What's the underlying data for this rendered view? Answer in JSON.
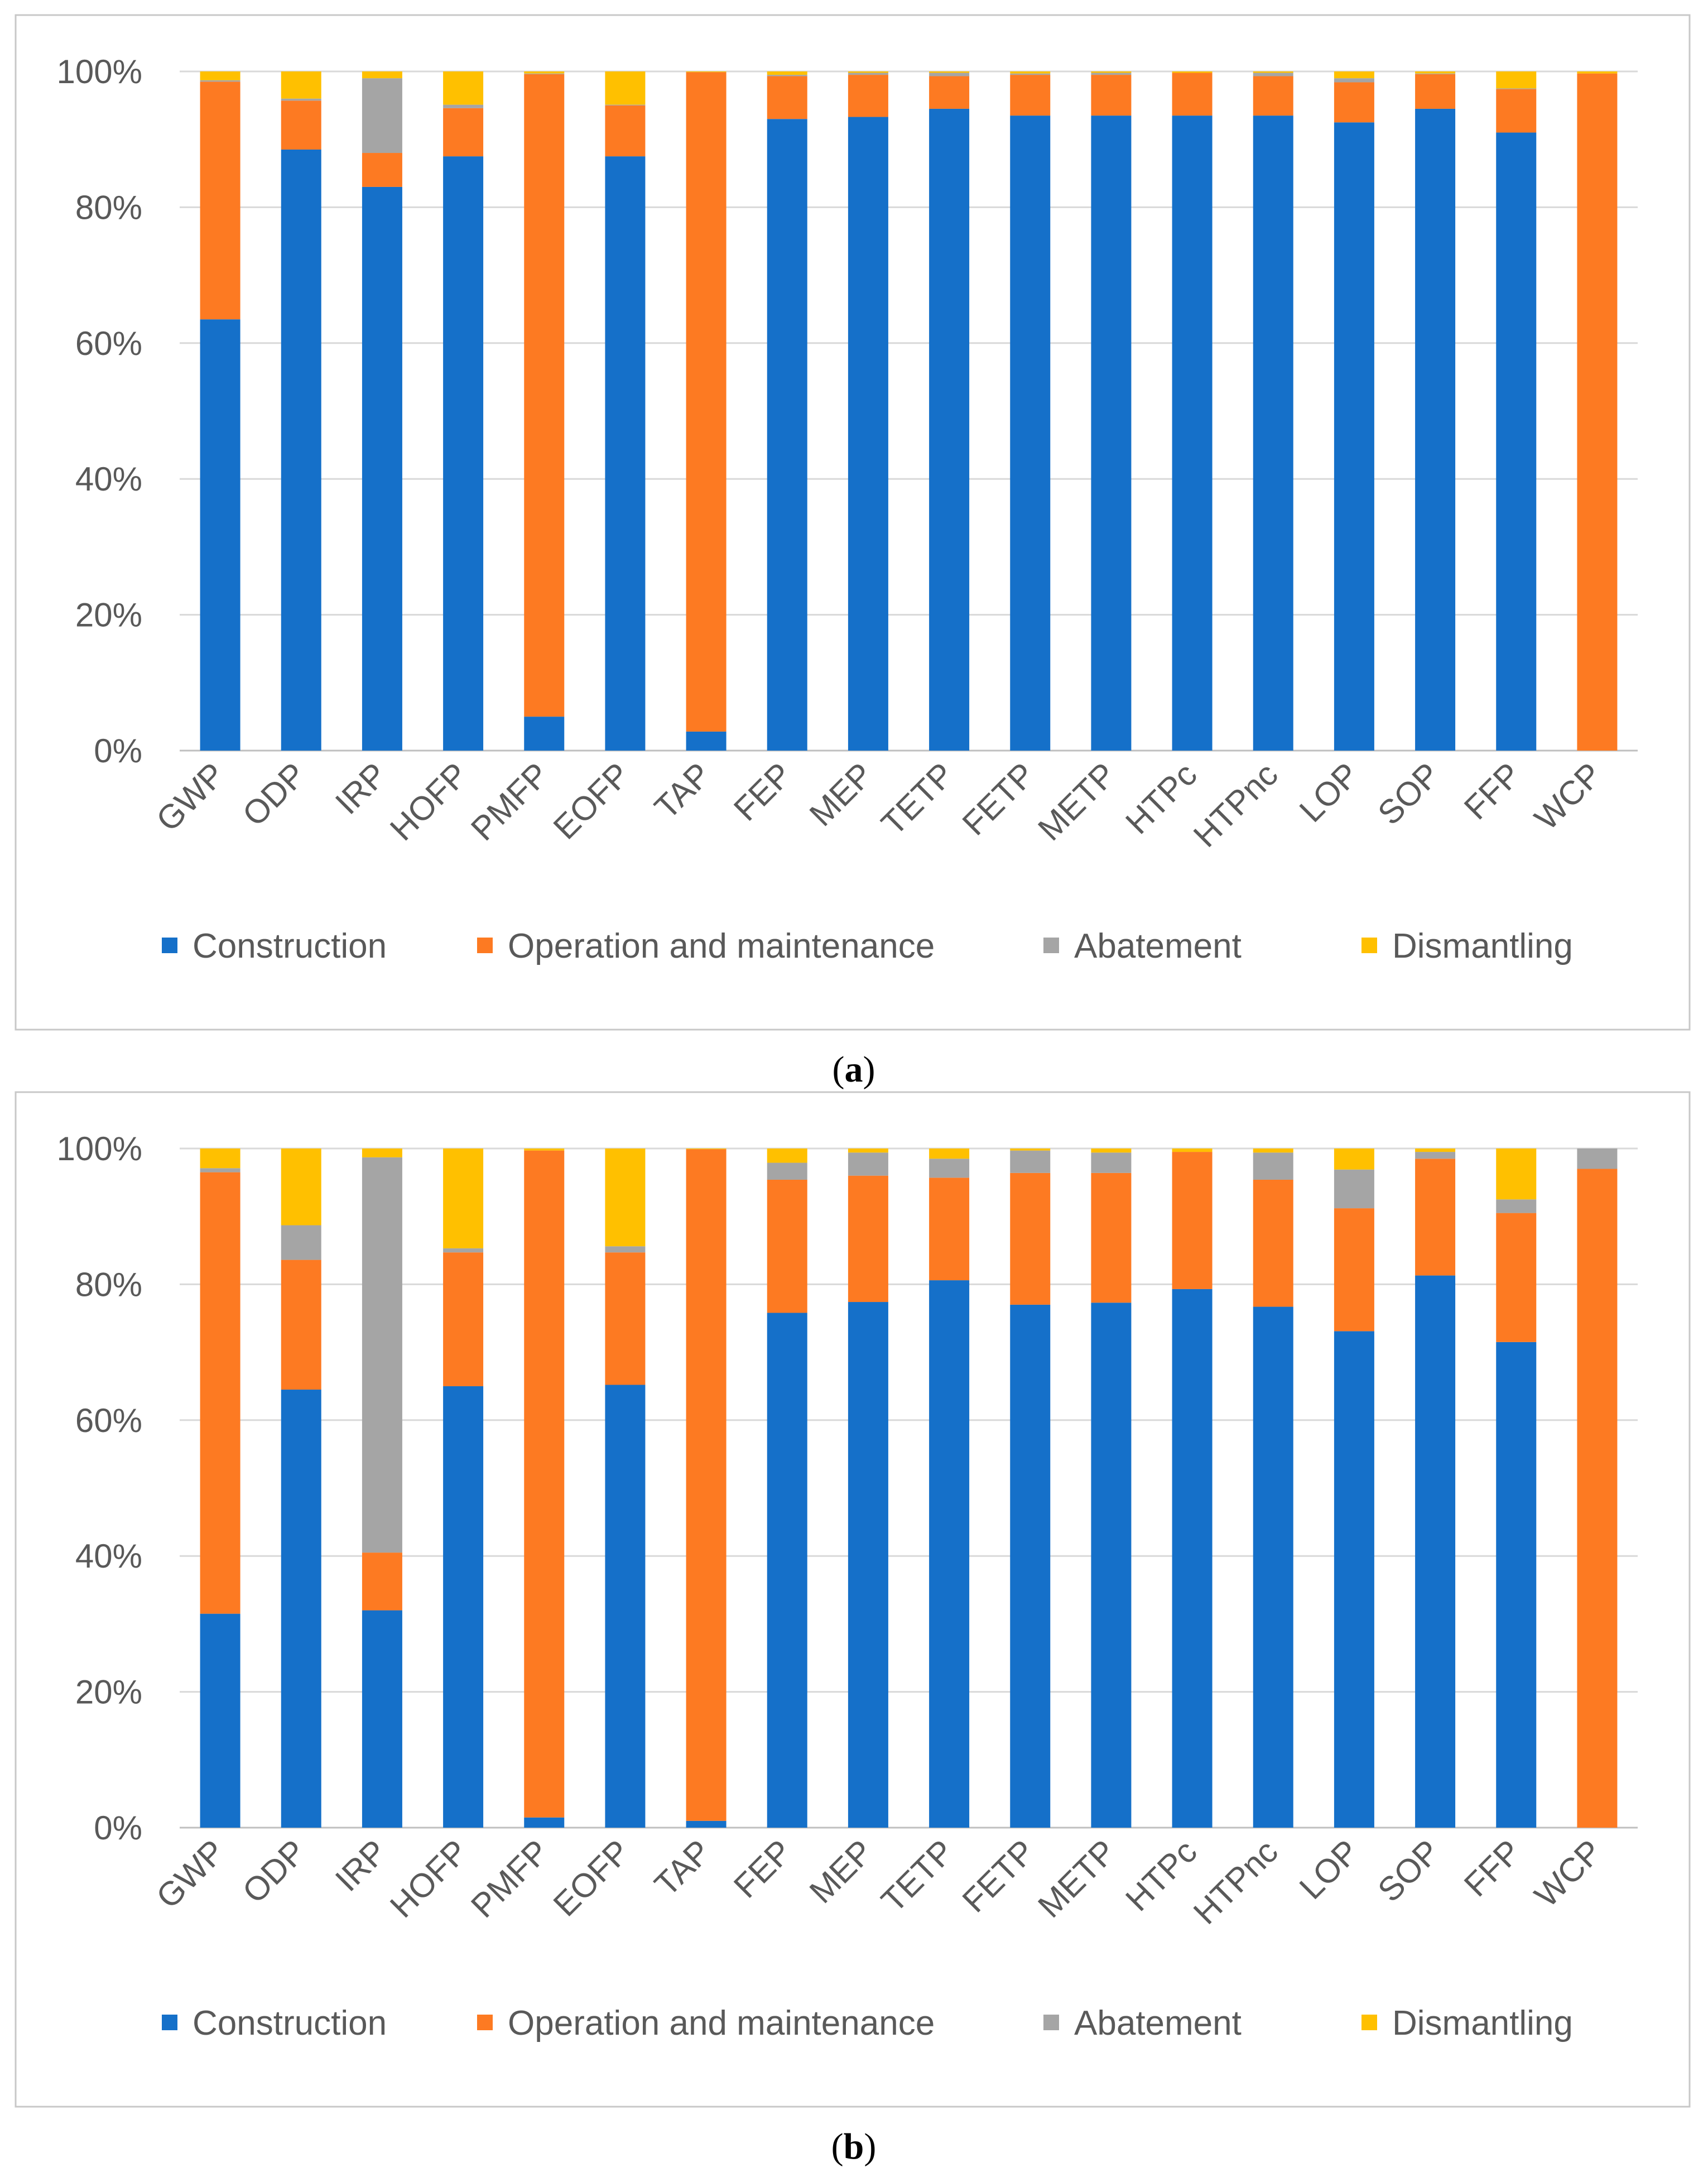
{
  "colors": {
    "Construction": "#1570c9",
    "Operation and maintenance": "#fd7a22",
    "Abatement": "#a5a5a5",
    "Dismantling": "#ffc000"
  },
  "chart_data": [
    {
      "type": "bar",
      "stacked": true,
      "caption": {
        "open": "(",
        "letter": "a",
        "close": ")"
      },
      "categories": [
        "GWP",
        "ODP",
        "IRP",
        "HOFP",
        "PMFP",
        "EOFP",
        "TAP",
        "FEP",
        "MEP",
        "TETP",
        "FETP",
        "METP",
        "HTPc",
        "HTPnc",
        "LOP",
        "SOP",
        "FFP",
        "WCP"
      ],
      "yticks": [
        "0%",
        "20%",
        "40%",
        "60%",
        "80%",
        "100%"
      ],
      "ylim": [
        0,
        100
      ],
      "legend_position": "bottom",
      "series": [
        {
          "name": "Construction",
          "values": [
            63.5,
            88.5,
            83,
            87.5,
            5,
            87.5,
            2.8,
            93,
            93.3,
            94.5,
            93.5,
            93.5,
            93.5,
            93.5,
            92.5,
            94.5,
            91,
            0
          ]
        },
        {
          "name": "Operation and maintenance",
          "values": [
            35,
            7.2,
            5,
            7.1,
            94.6,
            7.5,
            97.1,
            6.3,
            6.2,
            4.8,
            6,
            6,
            6.3,
            5.8,
            5.9,
            5.1,
            6.4,
            99.7
          ]
        },
        {
          "name": "Abatement",
          "values": [
            0.2,
            0.3,
            11,
            0.5,
            0.1,
            0.1,
            0,
            0.2,
            0.3,
            0.5,
            0.2,
            0.3,
            0,
            0.5,
            0.6,
            0.1,
            0.1,
            0
          ]
        },
        {
          "name": "Dismantling",
          "values": [
            1.3,
            4,
            1,
            4.9,
            0.3,
            4.9,
            0.1,
            0.5,
            0.2,
            0.2,
            0.3,
            0.2,
            0.2,
            0.2,
            1,
            0.3,
            2.5,
            0.3
          ]
        }
      ]
    },
    {
      "type": "bar",
      "stacked": true,
      "caption": {
        "open": "(",
        "letter": "b",
        "close": ")"
      },
      "categories": [
        "GWP",
        "ODP",
        "IRP",
        "HOFP",
        "PMFP",
        "EOFP",
        "TAP",
        "FEP",
        "MEP",
        "TETP",
        "FETP",
        "METP",
        "HTPc",
        "HTPnc",
        "LOP",
        "SOP",
        "FFP",
        "WCP"
      ],
      "yticks": [
        "0%",
        "20%",
        "40%",
        "60%",
        "80%",
        "100%"
      ],
      "ylim": [
        0,
        100
      ],
      "legend_position": "bottom",
      "series": [
        {
          "name": "Construction",
          "values": [
            31.5,
            64.5,
            32,
            65,
            1.5,
            65.2,
            1,
            75.8,
            77.4,
            80.6,
            77,
            77.3,
            79.3,
            76.7,
            73.1,
            81.3,
            71.5,
            0
          ]
        },
        {
          "name": "Operation and maintenance",
          "values": [
            65,
            19.1,
            8.5,
            19.7,
            98.2,
            19.5,
            98.9,
            19.6,
            18.6,
            15.1,
            19.4,
            19.1,
            20.2,
            18.7,
            18.1,
            17.2,
            19,
            97
          ]
        },
        {
          "name": "Abatement",
          "values": [
            0.6,
            5.1,
            58.2,
            0.6,
            0,
            0.9,
            0,
            2.5,
            3.4,
            2.8,
            3.3,
            3,
            0,
            4,
            5.7,
            1,
            2,
            3
          ]
        },
        {
          "name": "Dismantling",
          "values": [
            2.9,
            11.3,
            1.3,
            14.7,
            0.3,
            14.4,
            0.1,
            2.1,
            0.6,
            1.5,
            0.3,
            0.6,
            0.5,
            0.6,
            3.1,
            0.5,
            7.5,
            0
          ]
        }
      ]
    }
  ]
}
